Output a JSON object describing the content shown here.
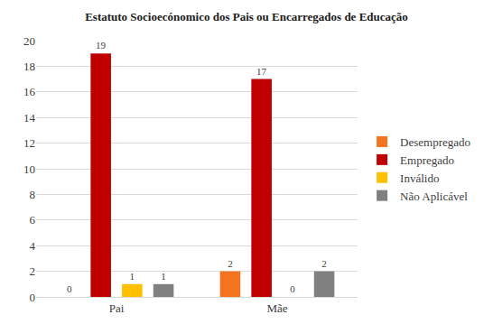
{
  "chart_data": {
    "type": "bar",
    "title": "Estatuto Socioecónomico dos Pais ou Encarregados de Educação",
    "categories": [
      "Pai",
      "Mãe"
    ],
    "series": [
      {
        "name": "Desempregado",
        "color": "#f4731f",
        "values": [
          0,
          2
        ]
      },
      {
        "name": "Empregado",
        "color": "#c00000",
        "values": [
          19,
          17
        ]
      },
      {
        "name": "Inválido",
        "color": "#ffc000",
        "values": [
          1,
          0
        ]
      },
      {
        "name": "Não Aplicável",
        "color": "#808080",
        "values": [
          1,
          2
        ]
      }
    ],
    "ylim": [
      0,
      20
    ],
    "yticks": [
      0,
      2,
      4,
      6,
      8,
      10,
      12,
      14,
      16,
      18,
      20
    ],
    "grid": true,
    "legend": "right",
    "data_labels": true
  }
}
